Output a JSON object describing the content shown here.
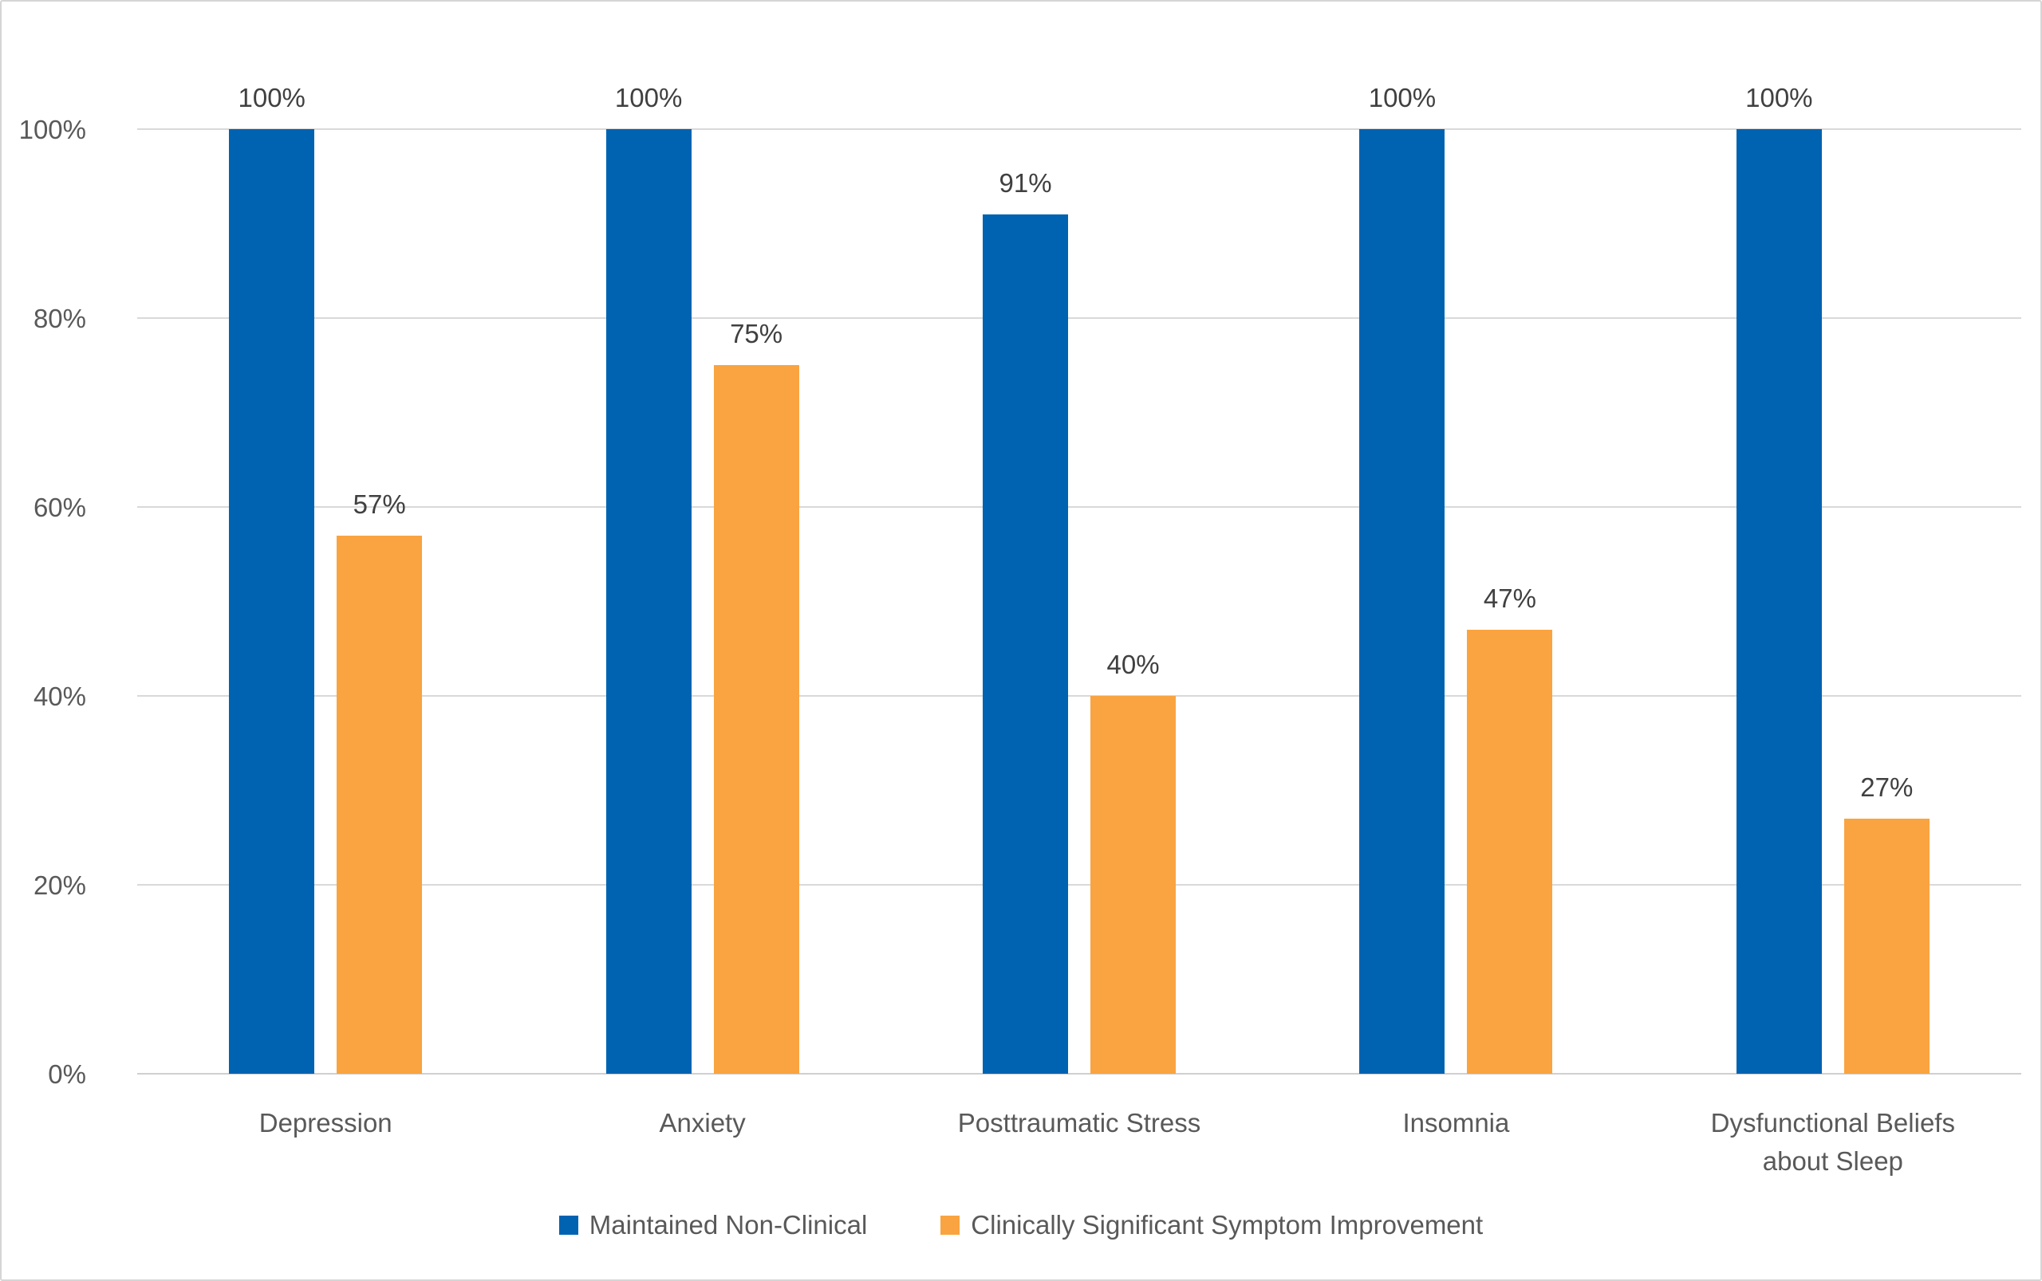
{
  "chart_data": {
    "type": "bar",
    "title": "",
    "xlabel": "",
    "ylabel": "",
    "grid": true,
    "legend_position": "bottom",
    "ylim": [
      0,
      100
    ],
    "categories": [
      "Depression",
      "Anxiety",
      "Posttraumatic Stress",
      "Insomnia",
      "Dysfunctional Beliefs about Sleep"
    ],
    "series": [
      {
        "name": "Maintained Non-Clinical",
        "color": "#0063b1",
        "values": [
          100,
          100,
          91,
          100,
          100
        ],
        "data_labels": [
          "100%",
          "100%",
          "91%",
          "100%",
          "100%"
        ]
      },
      {
        "name": "Clinically Significant Symptom Improvement",
        "color": "#f9a440",
        "values": [
          57,
          75,
          40,
          47,
          27
        ],
        "data_labels": [
          "57%",
          "75%",
          "40%",
          "47%",
          "27%"
        ]
      }
    ],
    "y_axis": {
      "ticks": [
        {
          "label": "0%",
          "value": 0
        },
        {
          "label": "20%",
          "value": 20
        },
        {
          "label": "40%",
          "value": 40
        },
        {
          "label": "60%",
          "value": 60
        },
        {
          "label": "80%",
          "value": 80
        },
        {
          "label": "100%",
          "value": 100
        }
      ]
    },
    "colors": {
      "gridline": "#d9d9d9",
      "axis_line": "#cfcfcf",
      "tick_text": "#595959",
      "value_label_text": "#404040",
      "frame_border": "#d5d5d5"
    }
  }
}
